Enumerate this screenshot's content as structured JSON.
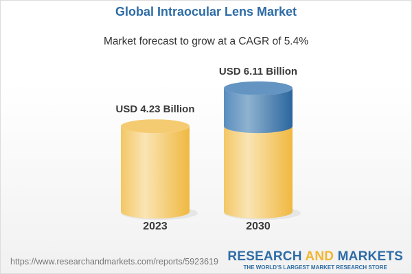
{
  "title": "Global Intraocular Lens Market",
  "subtitle": "Market forecast to grow at a CAGR of 5.4%",
  "chart_data": {
    "type": "bar",
    "style": "3d-cylinder",
    "categories": [
      "2023",
      "2030"
    ],
    "values": [
      4.23,
      6.11
    ],
    "data_labels": [
      "USD 4.23 Billion",
      "USD 6.11 Billion"
    ],
    "unit": "USD Billion",
    "colors": {
      "base": "#f2c25c",
      "growth": "#4f86b8"
    },
    "grid": false
  },
  "footer": {
    "url": "https://www.researchandmarkets.com/reports/5923619",
    "logo_part1": "RESEARCH ",
    "logo_part2": "AND",
    "logo_part3": " MARKETS",
    "logo_tagline": "THE WORLD'S LARGEST MARKET RESEARCH STORE"
  }
}
